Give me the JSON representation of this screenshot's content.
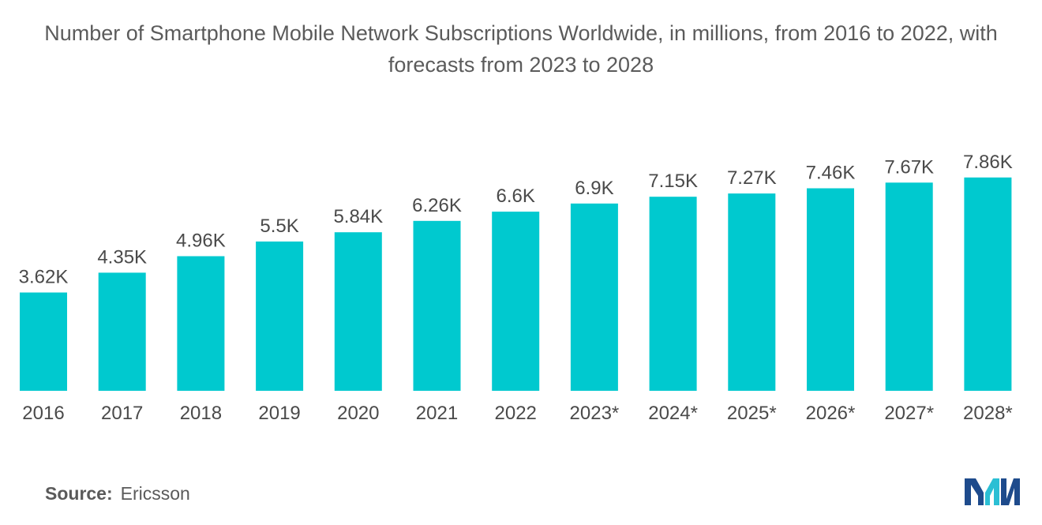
{
  "title": "Number of Smartphone Mobile Network Subscriptions Worldwide, in millions, from 2016 to 2022, with forecasts from 2023 to 2028",
  "source": {
    "label": "Source:",
    "value": "Ericsson"
  },
  "logo": {
    "icon": "mordor-intelligence-logo-icon",
    "colors": [
      "#1e4b8c",
      "#2bbfd4"
    ]
  },
  "colors": {
    "bar": "#00c9cf"
  },
  "chart_data": {
    "type": "bar",
    "title": "Number of Smartphone Mobile Network Subscriptions Worldwide, in millions, from 2016 to 2022, with forecasts from 2023 to 2028",
    "xlabel": "",
    "ylabel": "",
    "ylim": [
      0,
      8000
    ],
    "grid": false,
    "legend": "none",
    "categories": [
      "2016",
      "2017",
      "2018",
      "2019",
      "2020",
      "2021",
      "2022",
      "2023*",
      "2024*",
      "2025*",
      "2026*",
      "2027*",
      "2028*"
    ],
    "values": [
      3620,
      4350,
      4960,
      5500,
      5840,
      6260,
      6600,
      6900,
      7150,
      7270,
      7460,
      7670,
      7860
    ],
    "data_labels": [
      "3.62K",
      "4.35K",
      "4.96K",
      "5.5K",
      "5.84K",
      "6.26K",
      "6.6K",
      "6.9K",
      "7.15K",
      "7.27K",
      "7.46K",
      "7.67K",
      "7.86K"
    ]
  }
}
